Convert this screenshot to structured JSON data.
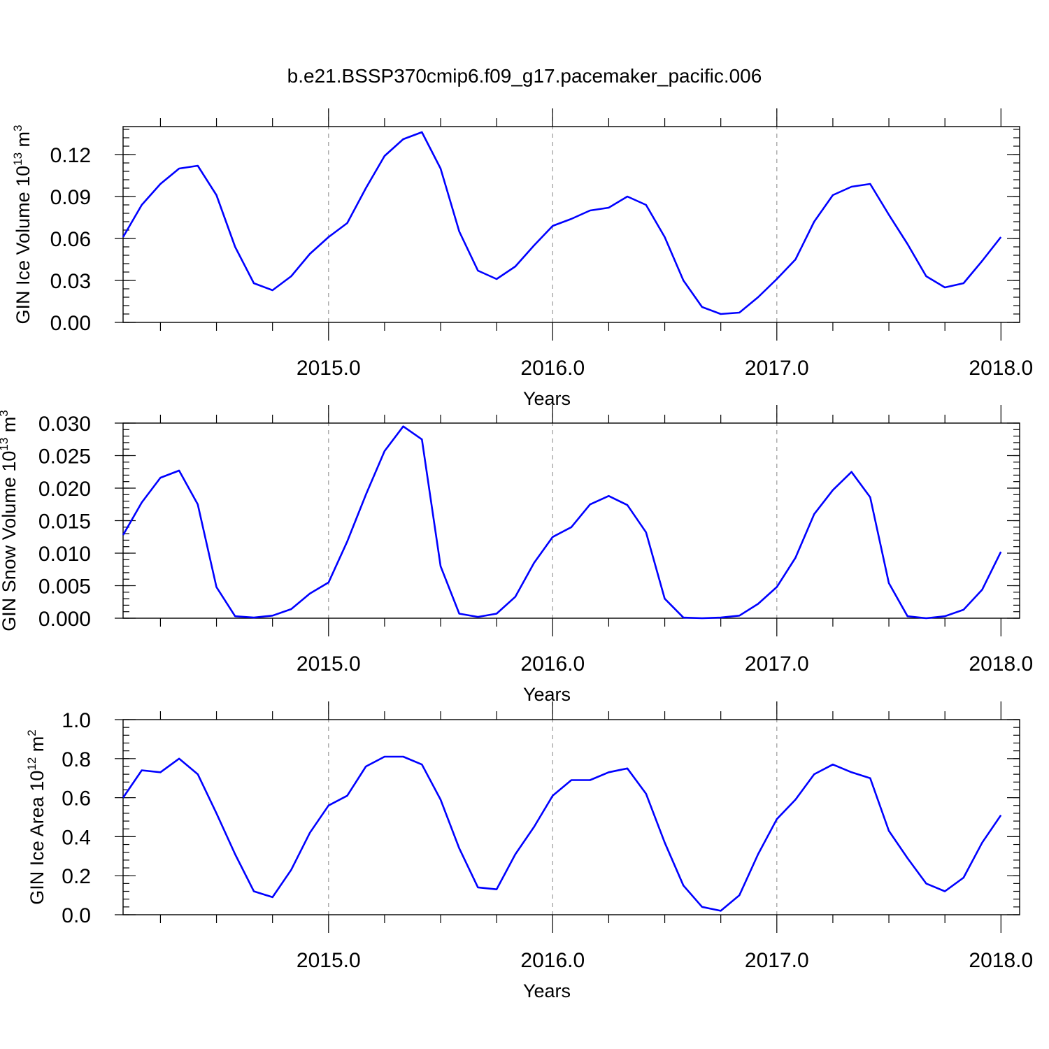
{
  "figure": {
    "title": "b.e21.BSSP370cmip6.f09_g17.pacemaker_pacific.006",
    "line_color": "#0000ff",
    "grid": "vertical dashed at major x ticks"
  },
  "chart_data": [
    {
      "type": "line",
      "ylabel": "GIN Ice Volume 10",
      "ylabel_exp": "13",
      "ylabel_unit": " m",
      "ylabel_unit_exp": "3",
      "xlabel": "Years",
      "xlim": [
        2014.0833,
        2018.0833
      ],
      "ylim": [
        0,
        0.14
      ],
      "yticks": [
        0,
        0.03,
        0.06,
        0.09,
        0.12
      ],
      "ytick_labels": [
        "0.00",
        "0.03",
        "0.06",
        "0.09",
        "0.12"
      ],
      "xticks": [
        2015,
        2016,
        2017,
        2018
      ],
      "xtick_labels": [
        "2015.0",
        "2016.0",
        "2017.0",
        "2018.0"
      ],
      "series": [
        {
          "x0": 2014.0833,
          "dx": 0.08333,
          "values": [
            0.061,
            0.084,
            0.099,
            0.11,
            0.112,
            0.091,
            0.054,
            0.028,
            0.023,
            0.033,
            0.049,
            0.061,
            0.071,
            0.096,
            0.119,
            0.131,
            0.136,
            0.11,
            0.065,
            0.037,
            0.031,
            0.04,
            0.055,
            0.069,
            0.074,
            0.08,
            0.082,
            0.09,
            0.084,
            0.061,
            0.03,
            0.011,
            0.006,
            0.007,
            0.018,
            0.031,
            0.045,
            0.072,
            0.091,
            0.097,
            0.099,
            0.077,
            0.056,
            0.033,
            0.025,
            0.028,
            0.044,
            0.061
          ]
        }
      ]
    },
    {
      "type": "line",
      "ylabel": "GIN Snow Volume 10",
      "ylabel_exp": "13",
      "ylabel_unit": " m",
      "ylabel_unit_exp": "3",
      "xlabel": "Years",
      "xlim": [
        2014.0833,
        2018.0833
      ],
      "ylim": [
        0,
        0.03
      ],
      "yticks": [
        0,
        0.005,
        0.01,
        0.015,
        0.02,
        0.025,
        0.03
      ],
      "ytick_labels": [
        "0.000",
        "0.005",
        "0.010",
        "0.015",
        "0.020",
        "0.025",
        "0.030"
      ],
      "xticks": [
        2015,
        2016,
        2017,
        2018
      ],
      "xtick_labels": [
        "2015.0",
        "2016.0",
        "2017.0",
        "2018.0"
      ],
      "series": [
        {
          "x0": 2014.0833,
          "dx": 0.08333,
          "values": [
            0.0128,
            0.0178,
            0.0216,
            0.0227,
            0.0175,
            0.0048,
            0.0003,
            0.0001,
            0.0004,
            0.0014,
            0.0038,
            0.0055,
            0.0118,
            0.019,
            0.0257,
            0.0295,
            0.0275,
            0.008,
            0.0007,
            0.0002,
            0.0007,
            0.0033,
            0.0085,
            0.0125,
            0.014,
            0.0175,
            0.0188,
            0.0174,
            0.0132,
            0.003,
            0.0001,
            0.0,
            0.0001,
            0.0004,
            0.0022,
            0.0048,
            0.0093,
            0.016,
            0.0197,
            0.0225,
            0.0186,
            0.0054,
            0.0003,
            0.0,
            0.0003,
            0.0013,
            0.0044,
            0.0102
          ]
        }
      ]
    },
    {
      "type": "line",
      "ylabel": "GIN Ice Area 10",
      "ylabel_exp": "12",
      "ylabel_unit": " m",
      "ylabel_unit_exp": "2",
      "xlabel": "Years",
      "xlim": [
        2014.0833,
        2018.0833
      ],
      "ylim": [
        0,
        1.0
      ],
      "yticks": [
        0,
        0.2,
        0.4,
        0.6,
        0.8,
        1.0
      ],
      "ytick_labels": [
        "0.0",
        "0.2",
        "0.4",
        "0.6",
        "0.8",
        "1.0"
      ],
      "xticks": [
        2015,
        2016,
        2017,
        2018
      ],
      "xtick_labels": [
        "2015.0",
        "2016.0",
        "2017.0",
        "2018.0"
      ],
      "series": [
        {
          "x0": 2014.0833,
          "dx": 0.08333,
          "values": [
            0.6,
            0.74,
            0.73,
            0.8,
            0.72,
            0.52,
            0.31,
            0.12,
            0.09,
            0.23,
            0.42,
            0.56,
            0.61,
            0.76,
            0.81,
            0.81,
            0.77,
            0.59,
            0.34,
            0.14,
            0.13,
            0.31,
            0.45,
            0.61,
            0.69,
            0.69,
            0.73,
            0.75,
            0.62,
            0.37,
            0.15,
            0.04,
            0.02,
            0.1,
            0.31,
            0.49,
            0.59,
            0.72,
            0.77,
            0.73,
            0.7,
            0.43,
            0.29,
            0.16,
            0.12,
            0.19,
            0.37,
            0.51
          ]
        }
      ]
    }
  ]
}
